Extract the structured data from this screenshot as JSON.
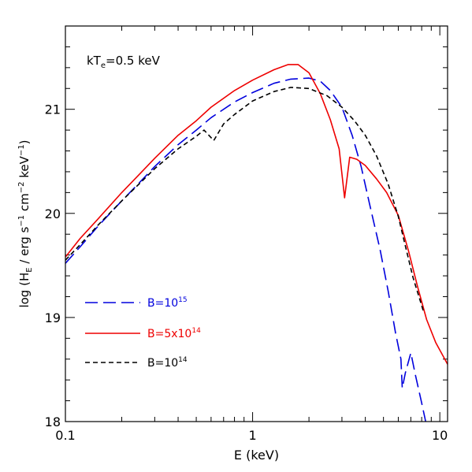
{
  "chart_data": {
    "type": "line",
    "xscale": "log",
    "xlim": [
      0.1,
      11
    ],
    "ylim": [
      18,
      21.8
    ],
    "xlabel": "E (keV)",
    "ylabel": "log (H_E / erg s^-1 cm^-2 keV^-1)",
    "annotation": "kT_e=0.5 keV",
    "x_ticks": [
      {
        "value": 0.1,
        "label": "0.1"
      },
      {
        "value": 1,
        "label": "1"
      },
      {
        "value": 10,
        "label": "10"
      }
    ],
    "y_ticks": [
      {
        "value": 18,
        "label": "18"
      },
      {
        "value": 19,
        "label": "19"
      },
      {
        "value": 20,
        "label": "20"
      },
      {
        "value": 21,
        "label": "21"
      }
    ],
    "series": [
      {
        "name": "B=10^15",
        "color": "#0000dd",
        "dash": "long",
        "points": [
          [
            0.1,
            19.52
          ],
          [
            0.12,
            19.68
          ],
          [
            0.15,
            19.88
          ],
          [
            0.2,
            20.12
          ],
          [
            0.25,
            20.3
          ],
          [
            0.3,
            20.45
          ],
          [
            0.4,
            20.66
          ],
          [
            0.5,
            20.8
          ],
          [
            0.6,
            20.92
          ],
          [
            0.8,
            21.07
          ],
          [
            1.0,
            21.16
          ],
          [
            1.3,
            21.25
          ],
          [
            1.6,
            21.29
          ],
          [
            2.0,
            21.3
          ],
          [
            2.3,
            21.27
          ],
          [
            2.6,
            21.18
          ],
          [
            3.0,
            21.02
          ],
          [
            3.4,
            20.75
          ],
          [
            3.8,
            20.45
          ],
          [
            4.2,
            20.1
          ],
          [
            4.8,
            19.65
          ],
          [
            5.3,
            19.25
          ],
          [
            5.8,
            18.85
          ],
          [
            6.2,
            18.6
          ],
          [
            6.3,
            18.32
          ],
          [
            6.55,
            18.47
          ],
          [
            7.0,
            18.66
          ],
          [
            7.4,
            18.45
          ],
          [
            8.0,
            18.18
          ],
          [
            8.4,
            18.0
          ]
        ]
      },
      {
        "name": "B=5x10^14",
        "color": "#ee0000",
        "dash": "solid",
        "points": [
          [
            0.1,
            19.58
          ],
          [
            0.12,
            19.76
          ],
          [
            0.15,
            19.95
          ],
          [
            0.2,
            20.2
          ],
          [
            0.25,
            20.38
          ],
          [
            0.3,
            20.53
          ],
          [
            0.4,
            20.75
          ],
          [
            0.5,
            20.89
          ],
          [
            0.6,
            21.02
          ],
          [
            0.8,
            21.18
          ],
          [
            1.0,
            21.28
          ],
          [
            1.3,
            21.38
          ],
          [
            1.55,
            21.43
          ],
          [
            1.75,
            21.43
          ],
          [
            2.0,
            21.35
          ],
          [
            2.3,
            21.15
          ],
          [
            2.6,
            20.9
          ],
          [
            2.9,
            20.62
          ],
          [
            3.1,
            20.15
          ],
          [
            3.3,
            20.54
          ],
          [
            3.6,
            20.52
          ],
          [
            4.0,
            20.46
          ],
          [
            4.6,
            20.33
          ],
          [
            5.2,
            20.2
          ],
          [
            6.0,
            19.98
          ],
          [
            6.8,
            19.64
          ],
          [
            7.6,
            19.3
          ],
          [
            8.5,
            18.98
          ],
          [
            9.5,
            18.76
          ],
          [
            11.0,
            18.55
          ]
        ]
      },
      {
        "name": "B=10^14",
        "color": "#000000",
        "dash": "short",
        "points": [
          [
            0.1,
            19.55
          ],
          [
            0.12,
            19.7
          ],
          [
            0.15,
            19.89
          ],
          [
            0.2,
            20.12
          ],
          [
            0.25,
            20.29
          ],
          [
            0.3,
            20.43
          ],
          [
            0.4,
            20.62
          ],
          [
            0.5,
            20.74
          ],
          [
            0.55,
            20.8
          ],
          [
            0.62,
            20.7
          ],
          [
            0.7,
            20.86
          ],
          [
            0.8,
            20.95
          ],
          [
            1.0,
            21.08
          ],
          [
            1.3,
            21.17
          ],
          [
            1.6,
            21.21
          ],
          [
            2.0,
            21.2
          ],
          [
            2.5,
            21.13
          ],
          [
            3.0,
            21.02
          ],
          [
            3.5,
            20.89
          ],
          [
            4.0,
            20.75
          ],
          [
            4.6,
            20.55
          ],
          [
            5.3,
            20.28
          ],
          [
            6.0,
            19.97
          ],
          [
            6.6,
            19.66
          ],
          [
            7.2,
            19.38
          ],
          [
            7.8,
            19.18
          ],
          [
            8.2,
            19.05
          ]
        ]
      }
    ]
  },
  "legend": [
    {
      "prefix": "B=10",
      "sup": "15",
      "suffix": "",
      "color": "#0000dd"
    },
    {
      "prefix": "B=5x10",
      "sup": "14",
      "suffix": "",
      "color": "#ee0000"
    },
    {
      "prefix": "B=10",
      "sup": "14",
      "suffix": "",
      "color": "#000000"
    }
  ],
  "labels": {
    "xlabel": "E (keV)",
    "annotation_main": "kT",
    "annotation_sub": "e",
    "annotation_rest": "=0.5 keV",
    "ylabel_pre": "log (H",
    "ylabel_sub": "E",
    "ylabel_mid": " / erg s",
    "ylabel_sup1": "−1",
    "ylabel_mid2": " cm",
    "ylabel_sup2": "−2",
    "ylabel_mid3": " keV",
    "ylabel_sup3": "−1",
    "ylabel_post": ")"
  }
}
